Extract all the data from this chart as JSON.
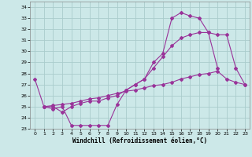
{
  "background_color": "#cce8e8",
  "grid_color": "#aacccc",
  "line_color": "#993399",
  "xlabel": "Windchill (Refroidissement éolien,°C)",
  "xlim": [
    -0.5,
    23.5
  ],
  "ylim": [
    23,
    34.5
  ],
  "yticks": [
    23,
    24,
    25,
    26,
    27,
    28,
    29,
    30,
    31,
    32,
    33,
    34
  ],
  "xticks": [
    0,
    1,
    2,
    3,
    4,
    5,
    6,
    7,
    8,
    9,
    10,
    11,
    12,
    13,
    14,
    15,
    16,
    17,
    18,
    19,
    20,
    21,
    22,
    23
  ],
  "line1_x": [
    0,
    1,
    2,
    3,
    4,
    5,
    6,
    7,
    8,
    9,
    10,
    11,
    12,
    13,
    14,
    15,
    16,
    17,
    18,
    19,
    20
  ],
  "line1_y": [
    27.5,
    25.0,
    24.8,
    25.0,
    23.3,
    23.3,
    23.3,
    23.3,
    23.3,
    25.2,
    26.5,
    27.0,
    27.5,
    29.0,
    29.8,
    33.0,
    33.5,
    33.2,
    33.0,
    31.7,
    28.5
  ],
  "line2_x": [
    1,
    2,
    3,
    4,
    5,
    6,
    7,
    8,
    9,
    10,
    11,
    12,
    13,
    14,
    15,
    16,
    17,
    18,
    19,
    20,
    21,
    22,
    23
  ],
  "line2_y": [
    25.0,
    25.0,
    24.5,
    25.0,
    25.3,
    25.5,
    25.5,
    25.8,
    26.0,
    26.5,
    27.0,
    27.5,
    28.5,
    29.5,
    30.5,
    31.2,
    31.5,
    31.7,
    31.7,
    31.5,
    31.5,
    28.5,
    27.0
  ],
  "line3_x": [
    1,
    2,
    3,
    4,
    5,
    6,
    7,
    8,
    9,
    10,
    11,
    12,
    13,
    14,
    15,
    16,
    17,
    18,
    19,
    20,
    21,
    22,
    23
  ],
  "line3_y": [
    25.0,
    25.1,
    25.2,
    25.3,
    25.5,
    25.7,
    25.8,
    26.0,
    26.2,
    26.4,
    26.5,
    26.7,
    26.9,
    27.0,
    27.2,
    27.5,
    27.7,
    27.9,
    28.0,
    28.2,
    27.5,
    27.2,
    27.0
  ]
}
